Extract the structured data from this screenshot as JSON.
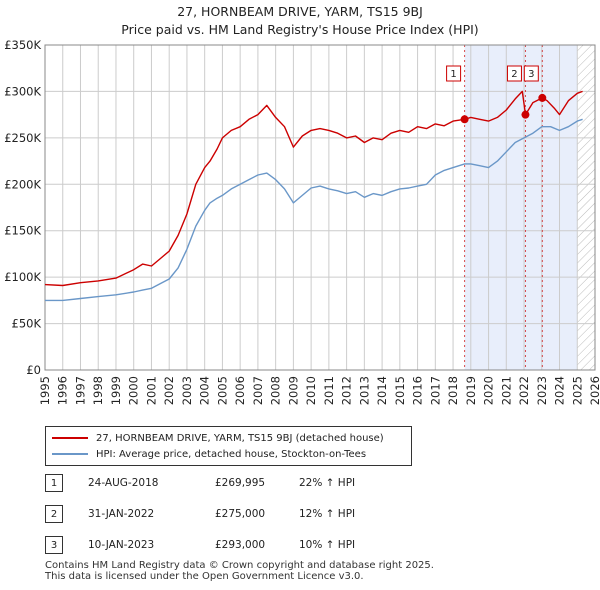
{
  "chart_data": {
    "type": "line",
    "title": "27, HORNBEAM DRIVE, YARM, TS15 9BJ",
    "subtitle": "Price paid vs. HM Land Registry's House Price Index (HPI)",
    "xlim": [
      1995,
      2026
    ],
    "ylim": [
      0,
      350000
    ],
    "x_ticks": [
      1995,
      1996,
      1997,
      1998,
      1999,
      2000,
      2001,
      2002,
      2003,
      2004,
      2005,
      2006,
      2007,
      2008,
      2009,
      2010,
      2011,
      2012,
      2013,
      2014,
      2015,
      2016,
      2017,
      2018,
      2019,
      2020,
      2021,
      2022,
      2023,
      2024,
      2025,
      2026
    ],
    "y_ticks": [
      0,
      50000,
      100000,
      150000,
      200000,
      250000,
      300000,
      350000
    ],
    "y_tick_labels": [
      "£0",
      "£50K",
      "£100K",
      "£150K",
      "£200K",
      "£250K",
      "£300K",
      "£350K"
    ],
    "grid": true,
    "shaded_regions": [
      [
        2018.65,
        2025.0
      ]
    ],
    "hatched_region": [
      2025.0,
      2026.0
    ],
    "series": [
      {
        "name": "27, HORNBEAM DRIVE, YARM, TS15 9BJ (detached house)",
        "color": "#cc0000",
        "x": [
          1995,
          1996,
          1997,
          1998,
          1999,
          2000,
          2000.5,
          2001,
          2001.5,
          2002,
          2002.5,
          2003,
          2003.5,
          2004,
          2004.3,
          2004.7,
          2005,
          2005.5,
          2006,
          2006.5,
          2007,
          2007.5,
          2008,
          2008.5,
          2009,
          2009.5,
          2010,
          2010.5,
          2011,
          2011.5,
          2012,
          2012.5,
          2013,
          2013.5,
          2014,
          2014.5,
          2015,
          2015.5,
          2016,
          2016.5,
          2017,
          2017.5,
          2018,
          2018.65,
          2019,
          2019.5,
          2020,
          2020.5,
          2021,
          2021.5,
          2021.9,
          2022.08,
          2022.5,
          2023.03,
          2023.3,
          2023.7,
          2024,
          2024.5,
          2025,
          2025.3
        ],
        "values": [
          92000,
          91000,
          94000,
          96000,
          99000,
          108000,
          114000,
          112000,
          120000,
          128000,
          145000,
          168000,
          200000,
          218000,
          225000,
          238000,
          250000,
          258000,
          262000,
          270000,
          275000,
          285000,
          272000,
          262000,
          240000,
          252000,
          258000,
          260000,
          258000,
          255000,
          250000,
          252000,
          245000,
          250000,
          248000,
          255000,
          258000,
          256000,
          262000,
          260000,
          265000,
          263000,
          268000,
          269995,
          272000,
          270000,
          268000,
          272000,
          280000,
          292000,
          300000,
          275000,
          288000,
          293000,
          290000,
          282000,
          275000,
          290000,
          298000,
          300000
        ]
      },
      {
        "name": "HPI: Average price, detached house, Stockton-on-Tees",
        "color": "#6a97c8",
        "x": [
          1995,
          1996,
          1997,
          1998,
          1999,
          2000,
          2000.5,
          2001,
          2001.5,
          2002,
          2002.5,
          2003,
          2003.5,
          2004,
          2004.3,
          2004.7,
          2005,
          2005.5,
          2006,
          2006.5,
          2007,
          2007.5,
          2008,
          2008.5,
          2009,
          2009.5,
          2010,
          2010.5,
          2011,
          2011.5,
          2012,
          2012.5,
          2013,
          2013.5,
          2014,
          2014.5,
          2015,
          2015.5,
          2016,
          2016.5,
          2017,
          2017.5,
          2018,
          2018.65,
          2019,
          2019.5,
          2020,
          2020.5,
          2021,
          2021.5,
          2022,
          2022.5,
          2023,
          2023.5,
          2024,
          2024.5,
          2025,
          2025.3
        ],
        "values": [
          75000,
          75000,
          77000,
          79000,
          81000,
          84000,
          86000,
          88000,
          93000,
          98000,
          110000,
          130000,
          155000,
          172000,
          180000,
          185000,
          188000,
          195000,
          200000,
          205000,
          210000,
          212000,
          205000,
          195000,
          180000,
          188000,
          196000,
          198000,
          195000,
          193000,
          190000,
          192000,
          186000,
          190000,
          188000,
          192000,
          195000,
          196000,
          198000,
          200000,
          210000,
          215000,
          218000,
          222000,
          222000,
          220000,
          218000,
          225000,
          235000,
          245000,
          250000,
          255000,
          262000,
          262000,
          258000,
          262000,
          268000,
          270000
        ]
      }
    ],
    "sale_markers": [
      {
        "label": "1",
        "x": 2018.65,
        "y": 269995
      },
      {
        "label": "2",
        "x": 2022.08,
        "y": 275000
      },
      {
        "label": "3",
        "x": 2023.03,
        "y": 293000
      }
    ],
    "axis_tick_x_labels": [
      "1995",
      "1996",
      "1997",
      "1998",
      "1999",
      "2000",
      "2001",
      "2002",
      "2003",
      "2004",
      "2005",
      "2006",
      "2007",
      "2008",
      "2009",
      "2010",
      "2011",
      "2012",
      "2013",
      "2014",
      "2015",
      "2016",
      "2017",
      "2018",
      "2019",
      "2020",
      "2021",
      "2022",
      "2023",
      "2024",
      "2025",
      "2026"
    ]
  },
  "legend": {
    "red_label": "27, HORNBEAM DRIVE, YARM, TS15 9BJ (detached house)",
    "blue_label": "HPI: Average price, detached house, Stockton-on-Tees"
  },
  "transactions": [
    {
      "num": "1",
      "date": "24-AUG-2018",
      "price": "£269,995",
      "hpi": "22% ↑ HPI"
    },
    {
      "num": "2",
      "date": "31-JAN-2022",
      "price": "£275,000",
      "hpi": "12% ↑ HPI"
    },
    {
      "num": "3",
      "date": "10-JAN-2023",
      "price": "£293,000",
      "hpi": "10% ↑ HPI"
    }
  ],
  "footer": {
    "line1": "Contains HM Land Registry data © Crown copyright and database right 2025.",
    "line2": "This data is licensed under the Open Government Licence v3.0."
  },
  "colors": {
    "red": "#cc0000",
    "blue": "#6a97c8",
    "shade": "#e8eefb",
    "grid": "#cccccc"
  }
}
